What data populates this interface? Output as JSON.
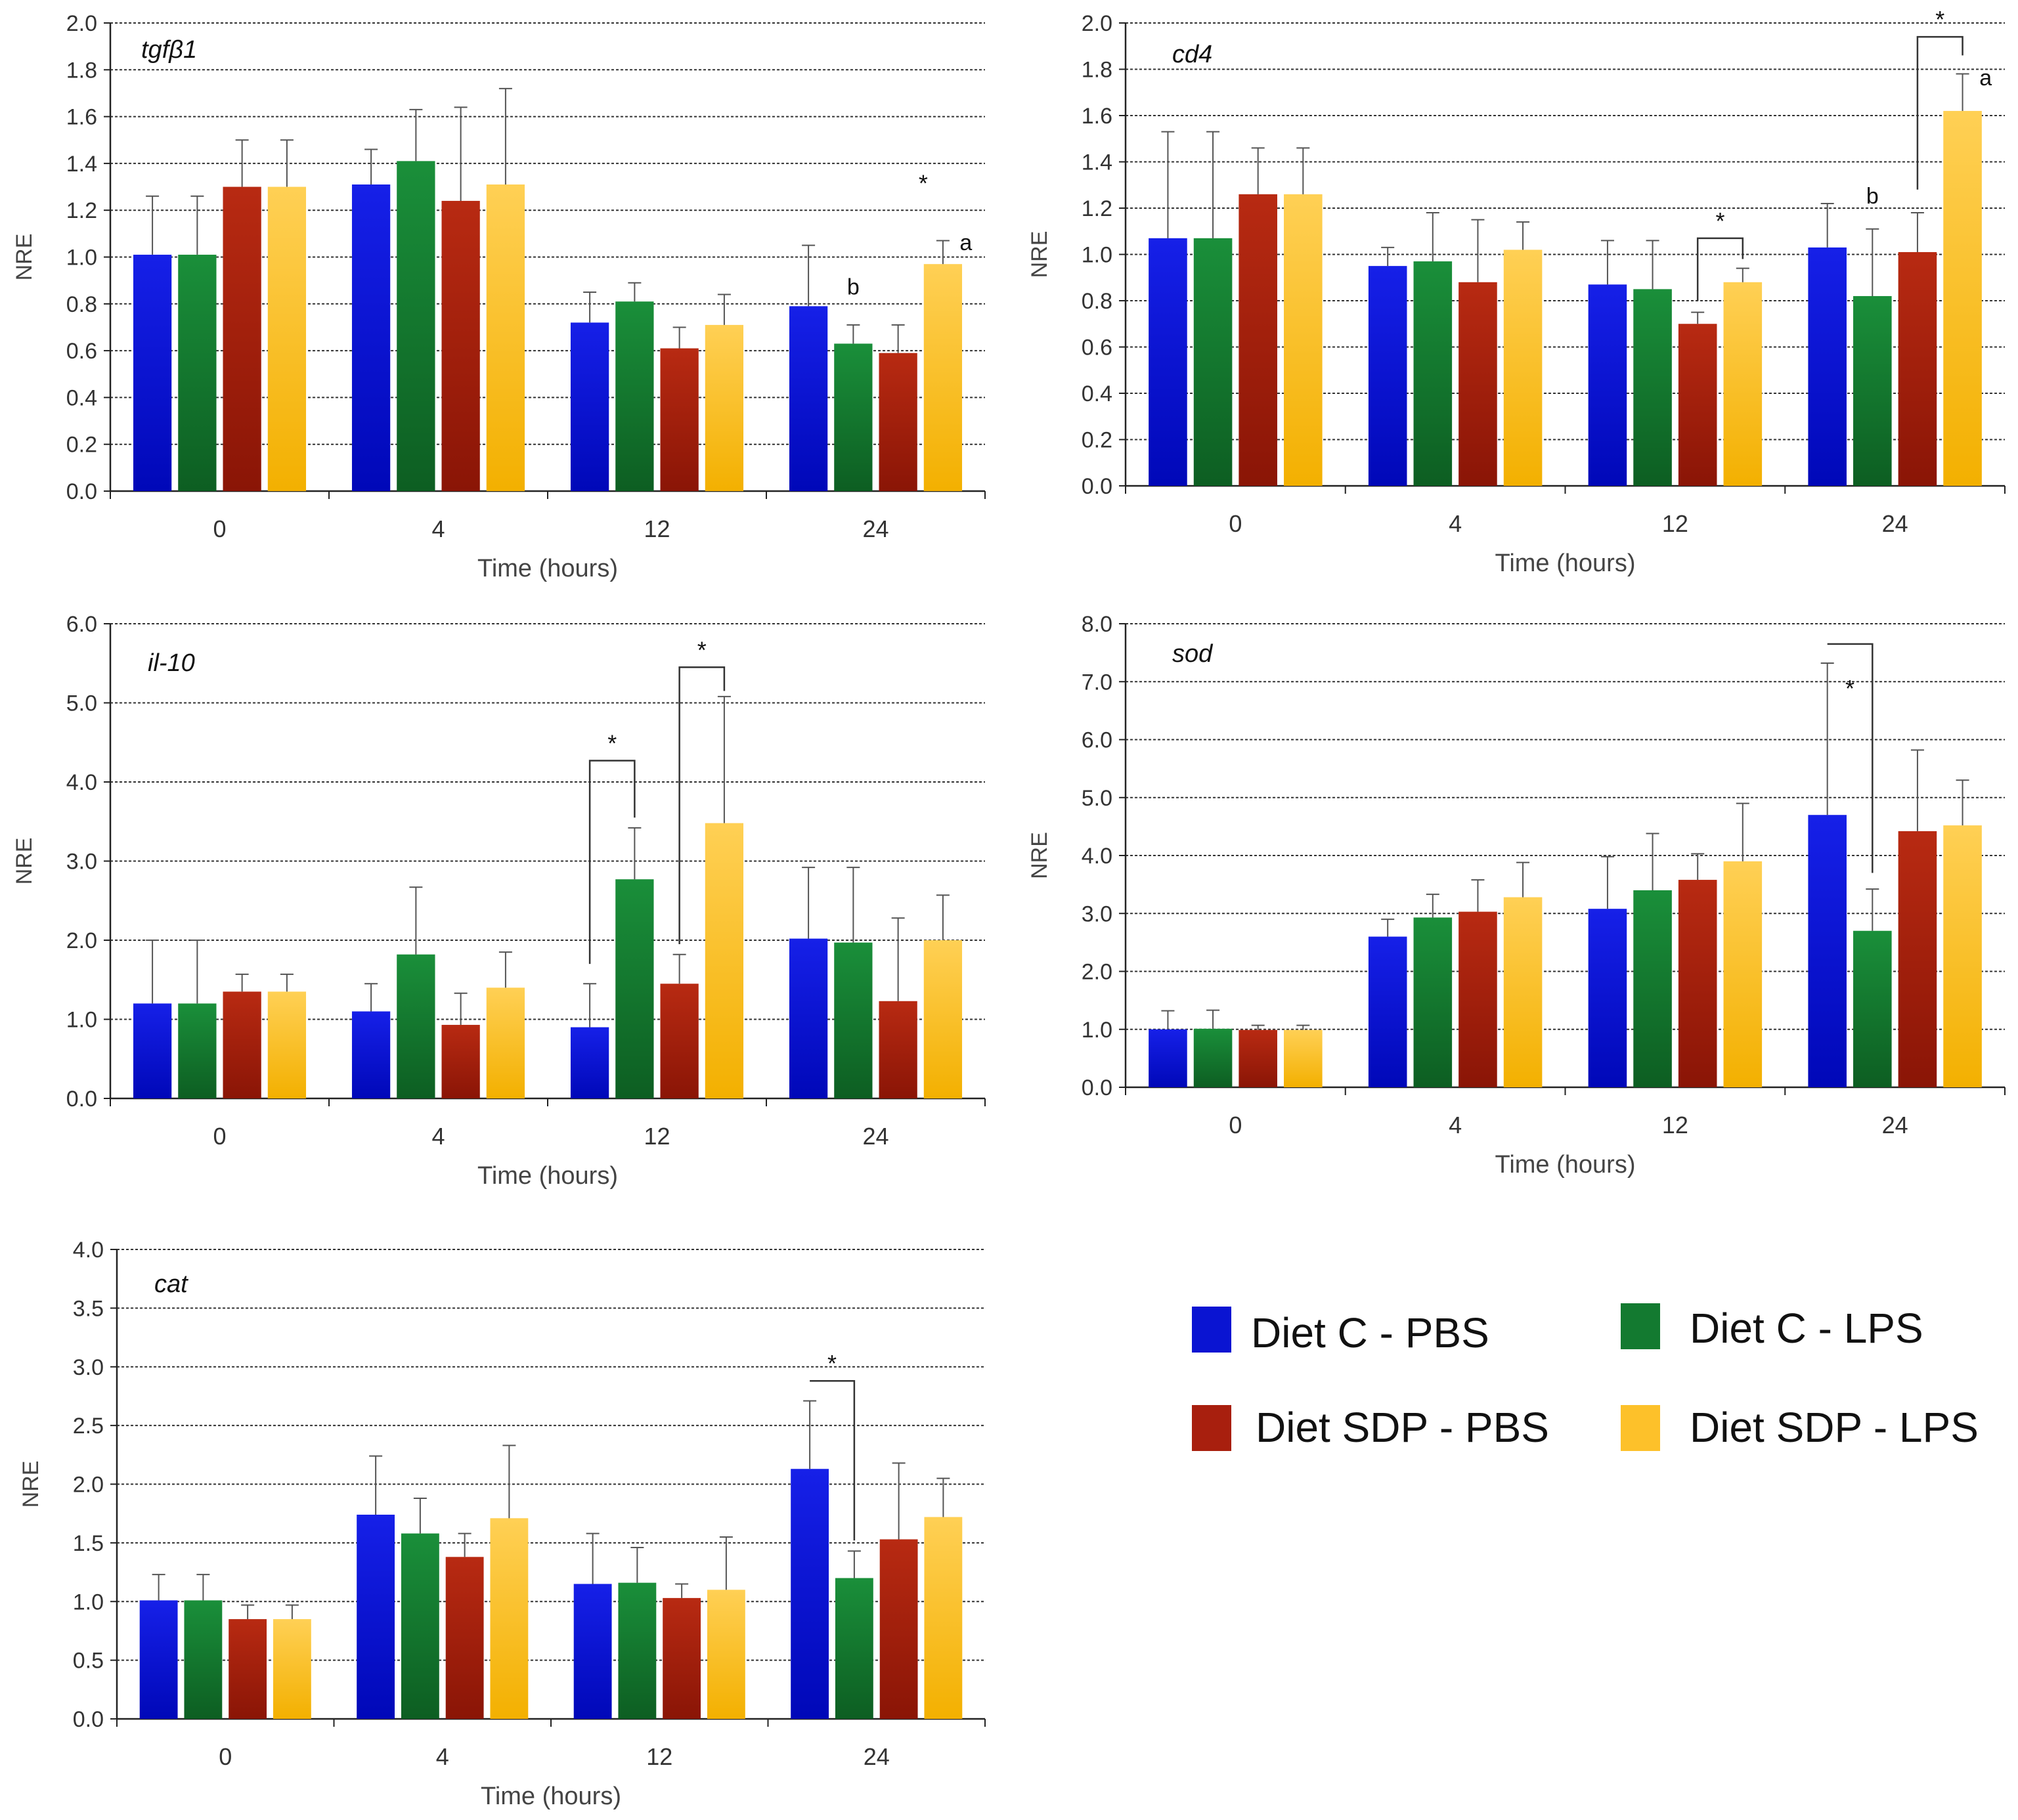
{
  "legend": [
    {
      "label": "Diet C - PBS",
      "color": "#0a14d2"
    },
    {
      "label": "Diet C - LPS",
      "color": "#137a30"
    },
    {
      "label": "Diet SDP - PBS",
      "color": "#a81f0e"
    },
    {
      "label": "Diet SDP - LPS",
      "color": "#fdc12a"
    }
  ],
  "chart_data": [
    {
      "type": "bar",
      "title": "tgfβ1",
      "xlabel": "Time (hours)",
      "ylabel": "NRE",
      "categories": [
        "0",
        "4",
        "12",
        "24"
      ],
      "ylim": [
        0,
        2.0
      ],
      "yticks": [
        "0.0",
        "0.2",
        "0.4",
        "0.6",
        "0.8",
        "1.0",
        "1.2",
        "1.4",
        "1.6",
        "1.8",
        "2.0"
      ],
      "grid": true,
      "series": [
        {
          "name": "Diet C - PBS",
          "values": [
            1.01,
            1.31,
            0.72,
            0.79
          ],
          "errors": [
            0.25,
            0.15,
            0.13,
            0.26
          ]
        },
        {
          "name": "Diet C - LPS",
          "values": [
            1.01,
            1.41,
            0.81,
            0.63
          ],
          "errors": [
            0.25,
            0.22,
            0.08,
            0.08
          ]
        },
        {
          "name": "Diet SDP - PBS",
          "values": [
            1.3,
            1.24,
            0.61,
            0.59
          ],
          "errors": [
            0.2,
            0.4,
            0.09,
            0.12
          ]
        },
        {
          "name": "Diet SDP - LPS",
          "values": [
            1.3,
            1.31,
            0.71,
            0.97
          ],
          "errors": [
            0.2,
            0.41,
            0.13,
            0.1
          ]
        }
      ],
      "annotations": [
        {
          "text": "*",
          "category": 3,
          "between": [
            3,
            3
          ],
          "y": 1.28
        },
        {
          "text": "b",
          "category": 3,
          "series": 1,
          "y": 0.84
        },
        {
          "text": "a",
          "category": 3,
          "series": 3,
          "y": 1.03,
          "side": "right"
        }
      ],
      "brackets": []
    },
    {
      "type": "bar",
      "title": "cd4",
      "xlabel": "Time (hours)",
      "ylabel": "NRE",
      "categories": [
        "0",
        "4",
        "12",
        "24"
      ],
      "ylim": [
        0,
        2.0
      ],
      "yticks": [
        "0.0",
        "0.2",
        "0.4",
        "0.6",
        "0.8",
        "1.0",
        "1.2",
        "1.4",
        "1.6",
        "1.8",
        "2.0"
      ],
      "grid": true,
      "series": [
        {
          "name": "Diet C - PBS",
          "values": [
            1.07,
            0.95,
            0.87,
            1.03
          ],
          "errors": [
            0.46,
            0.08,
            0.19,
            0.19
          ]
        },
        {
          "name": "Diet C - LPS",
          "values": [
            1.07,
            0.97,
            0.85,
            0.82
          ],
          "errors": [
            0.46,
            0.21,
            0.21,
            0.29
          ]
        },
        {
          "name": "Diet SDP - PBS",
          "values": [
            1.26,
            0.88,
            0.7,
            1.01
          ],
          "errors": [
            0.2,
            0.27,
            0.05,
            0.17
          ]
        },
        {
          "name": "Diet SDP - LPS",
          "values": [
            1.26,
            1.02,
            0.88,
            1.62
          ],
          "errors": [
            0.2,
            0.12,
            0.06,
            0.16
          ]
        }
      ],
      "annotations": [
        {
          "text": "b",
          "category": 3,
          "series": 1,
          "y": 1.22
        },
        {
          "text": "a",
          "category": 3,
          "series": 3,
          "y": 1.73,
          "side": "right"
        }
      ],
      "brackets": [
        {
          "category": 2,
          "from": 2,
          "to": 3,
          "y": 1.07,
          "from_y": 0.8,
          "to_y": 0.98,
          "label": "*"
        },
        {
          "category": 3,
          "from": 2,
          "to": 3,
          "y": 1.94,
          "from_y": 1.28,
          "to_y": 1.86,
          "label": "*"
        }
      ]
    },
    {
      "type": "bar",
      "title": "il-10",
      "xlabel": "Time (hours)",
      "ylabel": "NRE",
      "categories": [
        "0",
        "4",
        "12",
        "24"
      ],
      "ylim": [
        0,
        6.0
      ],
      "yticks": [
        "0.0",
        "1.0",
        "2.0",
        "3.0",
        "4.0",
        "5.0",
        "6.0"
      ],
      "grid": true,
      "series": [
        {
          "name": "Diet C - PBS",
          "values": [
            1.2,
            1.1,
            0.9,
            2.02
          ],
          "errors": [
            0.8,
            0.35,
            0.55,
            0.9
          ]
        },
        {
          "name": "Diet C - LPS",
          "values": [
            1.2,
            1.82,
            2.77,
            1.97
          ],
          "errors": [
            0.8,
            0.85,
            0.65,
            0.95
          ]
        },
        {
          "name": "Diet SDP - PBS",
          "values": [
            1.35,
            0.93,
            1.45,
            1.23
          ],
          "errors": [
            0.22,
            0.4,
            0.37,
            1.05
          ]
        },
        {
          "name": "Diet SDP - LPS",
          "values": [
            1.35,
            1.4,
            3.48,
            2.0
          ],
          "errors": [
            0.22,
            0.45,
            1.6,
            0.57
          ]
        }
      ],
      "annotations": [],
      "brackets": [
        {
          "category": 2,
          "from": 0,
          "to": 1,
          "y": 4.27,
          "from_y": 1.7,
          "to_y": 3.55,
          "label": "*"
        },
        {
          "category": 2,
          "from": 2,
          "to": 3,
          "y": 5.45,
          "from_y": 1.95,
          "to_y": 5.15,
          "label": "*"
        }
      ]
    },
    {
      "type": "bar",
      "title": "sod",
      "xlabel": "Time (hours)",
      "ylabel": "NRE",
      "categories": [
        "0",
        "4",
        "12",
        "24"
      ],
      "ylim": [
        0,
        8.0
      ],
      "yticks": [
        "0.0",
        "1.0",
        "2.0",
        "3.0",
        "4.0",
        "5.0",
        "6.0",
        "7.0",
        "8.0"
      ],
      "grid": true,
      "series": [
        {
          "name": "Diet C - PBS",
          "values": [
            1.0,
            2.6,
            3.08,
            4.7
          ],
          "errors": [
            0.32,
            0.3,
            0.9,
            2.62
          ]
        },
        {
          "name": "Diet C - LPS",
          "values": [
            1.01,
            2.93,
            3.4,
            2.7
          ],
          "errors": [
            0.32,
            0.4,
            0.98,
            0.72
          ]
        },
        {
          "name": "Diet SDP - PBS",
          "values": [
            0.99,
            3.03,
            3.58,
            4.42
          ],
          "errors": [
            0.08,
            0.55,
            0.45,
            1.4
          ]
        },
        {
          "name": "Diet SDP - LPS",
          "values": [
            0.99,
            3.28,
            3.9,
            4.52
          ],
          "errors": [
            0.08,
            0.6,
            1.0,
            0.78
          ]
        }
      ],
      "annotations": [],
      "brackets": [
        {
          "category": 3,
          "from": 0,
          "to": 1,
          "y": 7.65,
          "from_y": 7.65,
          "to_y": 3.7,
          "label": "*",
          "label_below": true
        }
      ]
    },
    {
      "type": "bar",
      "title": "cat",
      "xlabel": "Time (hours)",
      "ylabel": "NRE",
      "categories": [
        "0",
        "4",
        "12",
        "24"
      ],
      "ylim": [
        0,
        4.0
      ],
      "yticks": [
        "0.0",
        "0.5",
        "1.0",
        "1.5",
        "2.0",
        "2.5",
        "3.0",
        "3.5",
        "4.0"
      ],
      "grid": true,
      "series": [
        {
          "name": "Diet C - PBS",
          "values": [
            1.01,
            1.74,
            1.15,
            2.13
          ],
          "errors": [
            0.22,
            0.5,
            0.43,
            0.58
          ]
        },
        {
          "name": "Diet C - LPS",
          "values": [
            1.01,
            1.58,
            1.16,
            1.2
          ],
          "errors": [
            0.22,
            0.3,
            0.3,
            0.23
          ]
        },
        {
          "name": "Diet SDP - PBS",
          "values": [
            0.85,
            1.38,
            1.03,
            1.53
          ],
          "errors": [
            0.12,
            0.2,
            0.12,
            0.65
          ]
        },
        {
          "name": "Diet SDP - LPS",
          "values": [
            0.85,
            1.71,
            1.1,
            1.72
          ],
          "errors": [
            0.12,
            0.62,
            0.45,
            0.33
          ]
        }
      ],
      "annotations": [],
      "brackets": [
        {
          "category": 3,
          "from": 0,
          "to": 1,
          "y": 2.88,
          "from_y": 2.88,
          "to_y": 1.52,
          "label": "*"
        }
      ]
    }
  ]
}
